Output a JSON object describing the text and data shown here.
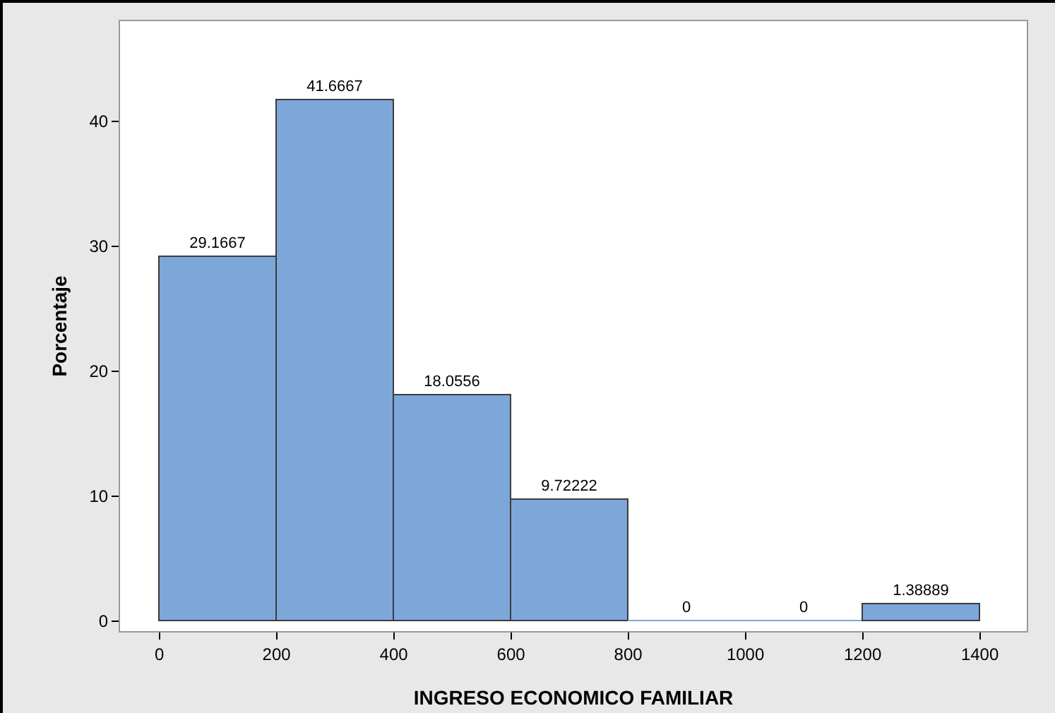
{
  "chart_data": {
    "type": "histogram",
    "xlabel": "INGRESO ECONOMICO FAMILIAR",
    "ylabel": "Porcentaje",
    "bins": [
      0,
      200,
      400,
      600,
      800,
      1000,
      1200,
      1400
    ],
    "values": [
      29.1667,
      41.6667,
      18.0556,
      9.72222,
      0,
      0,
      1.38889
    ],
    "color": "#7da7d9",
    "data_labels": true,
    "grid": false,
    "xlim": [
      -67,
      1480
    ],
    "xticks": [
      0,
      200,
      400,
      600,
      800,
      1000,
      1200,
      1400
    ],
    "ylim": [
      -0.8,
      48
    ],
    "yticks": [
      0,
      10,
      20,
      30,
      40
    ]
  }
}
